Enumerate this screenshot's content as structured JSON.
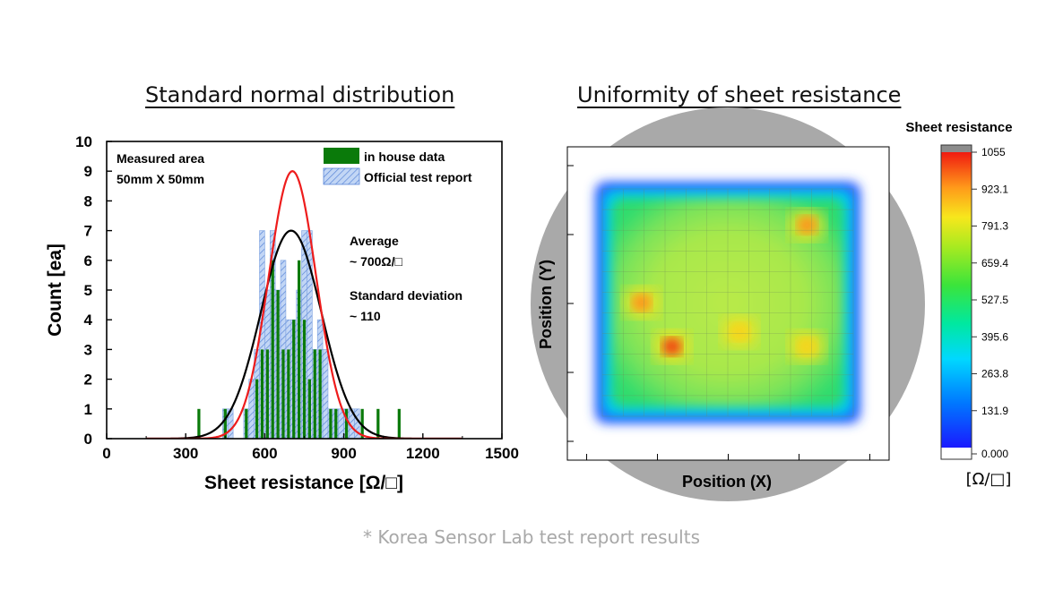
{
  "left_title": "Standard normal distribution",
  "right_title": "Uniformity of sheet resistance",
  "footnote": "* Korea Sensor Lab test report results",
  "colors": {
    "inhouse": "#0a7a0a",
    "official_fill": "#b7cff3",
    "official_hatch": "#5a86d8",
    "normal_inhouse": "#000000",
    "normal_official": "#ee1c1c",
    "wafer": "#a9a9a9"
  },
  "chart_data": [
    {
      "type": "bar",
      "xlabel": "Sheet resistance [Ω/□]",
      "ylabel": "Count [ea]",
      "xlim": [
        0,
        1500
      ],
      "ylim": [
        0,
        10
      ],
      "xticks": [
        0,
        300,
        600,
        900,
        1200,
        1500
      ],
      "yticks": [
        0,
        1,
        2,
        3,
        4,
        5,
        6,
        7,
        8,
        9,
        10
      ],
      "grid": false,
      "legend_position": "top-right",
      "legend": [
        "in house data",
        "Official test report"
      ],
      "annotations": {
        "area_title": "Measured area",
        "area_size": "50mm X 50mm",
        "avg_title": "Average",
        "avg_value": "~ 700Ω/□",
        "sd_title": "Standard deviation",
        "sd_value": "~ 110"
      },
      "bin_width": 20,
      "series": [
        {
          "name": "Official test report",
          "bins": [
            [
              450,
              1
            ],
            [
              470,
              1
            ],
            [
              530,
              1
            ],
            [
              550,
              2
            ],
            [
              570,
              3
            ],
            [
              590,
              7
            ],
            [
              610,
              5
            ],
            [
              630,
              7
            ],
            [
              650,
              5
            ],
            [
              670,
              6
            ],
            [
              690,
              4
            ],
            [
              710,
              4
            ],
            [
              730,
              5
            ],
            [
              750,
              7
            ],
            [
              770,
              7
            ],
            [
              790,
              3
            ],
            [
              810,
              4
            ],
            [
              830,
              3
            ],
            [
              850,
              1
            ],
            [
              870,
              1
            ],
            [
              890,
              1
            ],
            [
              910,
              1
            ],
            [
              930,
              1
            ],
            [
              950,
              1
            ]
          ]
        },
        {
          "name": "in house data",
          "bins": [
            [
              350,
              1
            ],
            [
              450,
              1
            ],
            [
              530,
              1
            ],
            [
              570,
              2
            ],
            [
              590,
              3
            ],
            [
              610,
              3
            ],
            [
              630,
              6
            ],
            [
              650,
              5
            ],
            [
              670,
              3
            ],
            [
              690,
              3
            ],
            [
              710,
              4
            ],
            [
              730,
              6
            ],
            [
              750,
              4
            ],
            [
              770,
              2
            ],
            [
              790,
              3
            ],
            [
              810,
              3
            ],
            [
              850,
              1
            ],
            [
              870,
              1
            ],
            [
              910,
              1
            ],
            [
              970,
              1
            ],
            [
              1030,
              1
            ],
            [
              1110,
              1
            ]
          ]
        }
      ],
      "curves": [
        {
          "name": "normal fit (in house)",
          "mean": 700,
          "sd": 115,
          "peak": 7
        },
        {
          "name": "normal fit (official)",
          "mean": 705,
          "sd": 90,
          "peak": 9
        }
      ]
    },
    {
      "type": "heatmap",
      "xlabel": "Position (X)",
      "ylabel": "Position (Y)",
      "colorbar_title": "Sheet resistance",
      "colorbar_unit": "[Ω/□]",
      "colorbar_ticks": [
        "1055",
        "923.1",
        "791.3",
        "659.4",
        "527.5",
        "395.6",
        "263.8",
        "131.9",
        "0.000"
      ],
      "colorbar_range": [
        0,
        1055
      ],
      "hotspots_description": "uniform green center (~600) falling to blue at edges",
      "hotspots": [
        {
          "u": 0.26,
          "v": 0.71,
          "value": 920
        },
        {
          "u": 0.13,
          "v": 0.5,
          "value": 830
        },
        {
          "u": 0.84,
          "v": 0.13,
          "value": 800
        },
        {
          "u": 0.55,
          "v": 0.64,
          "value": 780
        },
        {
          "u": 0.84,
          "v": 0.71,
          "value": 760
        }
      ]
    }
  ]
}
